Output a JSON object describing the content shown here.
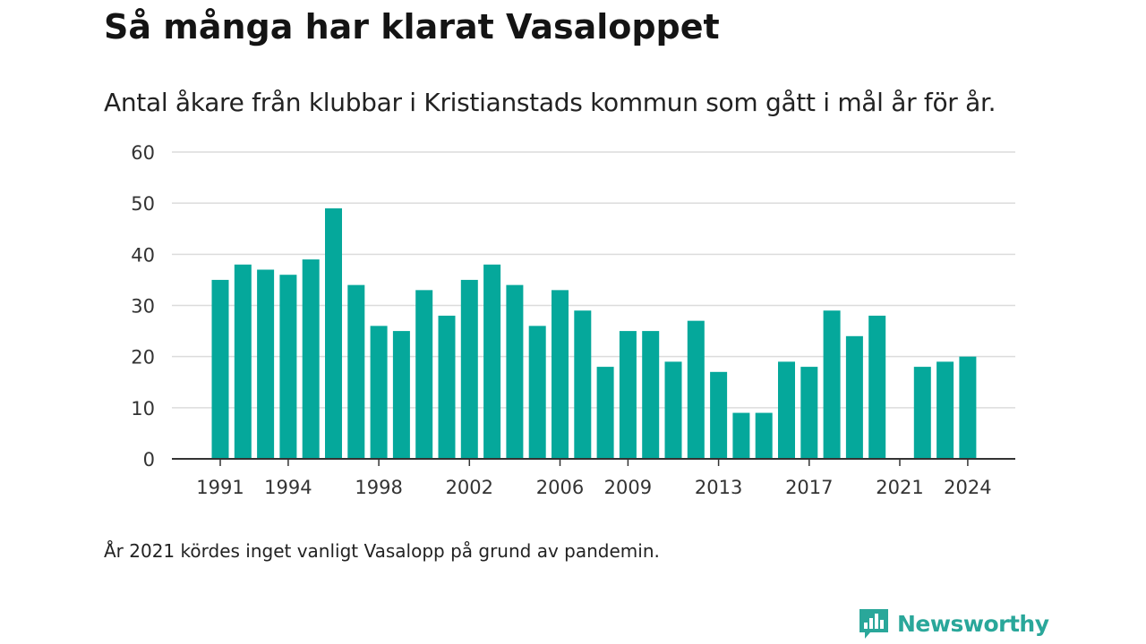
{
  "header": {
    "title": "Så många har klarat Vasaloppet",
    "subtitle": "Antal åkare från klubbar i Kristianstads kommun som gått i mål år för år."
  },
  "footer": {
    "note": "År 2021 kördes inget vanligt Vasalopp på grund av pandemin.",
    "brand": "Newsworthy"
  },
  "colors": {
    "bar": "#05a89b",
    "grid": "#dcdcdc",
    "axis": "#333333",
    "brand": "#2aa79a"
  },
  "chart_data": {
    "type": "bar",
    "categories": [
      "1991",
      "1992",
      "1993",
      "1994",
      "1995",
      "1996",
      "1997",
      "1998",
      "1999",
      "2000",
      "2001",
      "2002",
      "2003",
      "2004",
      "2005",
      "2006",
      "2007",
      "2008",
      "2009",
      "2010",
      "2011",
      "2012",
      "2013",
      "2014",
      "2015",
      "2016",
      "2017",
      "2018",
      "2019",
      "2020",
      "2021",
      "2022",
      "2023",
      "2024"
    ],
    "values": [
      35,
      38,
      37,
      36,
      39,
      49,
      34,
      26,
      25,
      33,
      28,
      35,
      38,
      34,
      26,
      33,
      29,
      18,
      25,
      25,
      19,
      27,
      17,
      9,
      9,
      19,
      18,
      29,
      24,
      28,
      null,
      18,
      19,
      20
    ],
    "x_tick_labels": [
      "1991",
      "1994",
      "1998",
      "2002",
      "2006",
      "2009",
      "2013",
      "2017",
      "2021",
      "2024"
    ],
    "y_ticks": [
      0,
      10,
      20,
      30,
      40,
      50,
      60
    ],
    "ylim": [
      0,
      60
    ],
    "grid": true,
    "xlabel": "",
    "ylabel": ""
  }
}
